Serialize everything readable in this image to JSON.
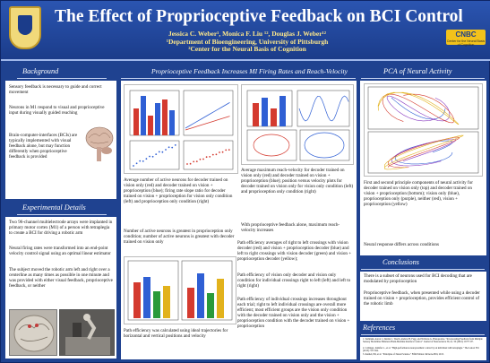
{
  "header": {
    "title": "The Effect of Proprioceptive Feedback on BCI Control",
    "authors": "Jessica C. Weber¹, Monica F. Liu ¹², Douglas J. Weber¹²",
    "affil1": "¹Department of Bioengineering, University of Pittsburgh",
    "affil2": "²Center for the Neural Basis of Cognition",
    "logo_text": "CNBC",
    "logo_sub": "Center for the Neural Basis of Cognition"
  },
  "sections": {
    "background": "Background",
    "experimental": "Experimental Details",
    "middle": "Proprioceptive Feedback Increases MI Firing Rates and Reach-Velocity",
    "pca": "PCA of Neural Activity",
    "conclusions": "Conclusions",
    "references": "References"
  },
  "background": {
    "p1": "Sensory feedback is necessary to guide and correct movement",
    "p2": "Neurons in M1 respond to visual and proprioceptive input during visually guided reaching",
    "p3": "Brain-computer-interfaces (BCIs) are typically implemented with visual feedback alone, but may function differently when proprioceptive feedback is provided"
  },
  "experimental": {
    "p1": "Two 96-channel multielectrode arrays were implanted in primary motor cortex (M1) of a person with tetraplegia to create a BCI for driving a robotic arm",
    "p2": "Neural firing rates were transformed into an end-point velocity control signal using an optimal linear estimator",
    "p3": "The subject moved the robotic arm left and right over a centerline as many times as possible in one minute and was provided with either visual feedback, proprioceptive feedback, or neither"
  },
  "middle": {
    "c1": "Average number of active neurons for decoder trained on vision only (red) and decoder trained on vision + proprioception (blue); firing rate slope ratio for decoder trained on vision + proprioception for vision only condition (left) and proprioception only condition (right)",
    "c2": "Number of active neurons is greatest in proprioception only condition; number of active neurons is greatest with decoder trained on vision only",
    "c3": "Path efficiency was calculated using ideal trajectories for horizontal and vertical positions and velocity",
    "r1": "Average maximum reach-velocity for decoder trained on vision only (red) and decoder trained on vision + proprioception (blue); position versus velocity plots for decoder trained on vision only for vision only condition (left) and proprioception only condition (right)",
    "r2": "With proprioceptive feedback alone, maximum reach-velocity increases",
    "r3": "Path efficiency averages of right to left crossings with vision decoder (red) and vision + proprioception decoder (blue) and left to right crossings with vision decoder (green) and vision + proprioception decoder (yellow);",
    "r4": "Path efficiency of vision only decoder and vision only condition for individual crossings right to left (left) and left to right (right)",
    "r5": "Path efficiency of individual crossings increases throughout each trial; right to left individual crossings are overall more efficient; most efficient groups are the vision only condition with the decoder trained on vision only and the vision + proprioception condition with the decoder trained on vision + proprioception"
  },
  "pca": {
    "p1": "First and second principle components of neural activity for decoder trained on vision only (top) and decoder trained on vision + proprioception (bottom); vision only (blue), proprioception only (purple), neither (red), vision + proprioception (yellow)",
    "p2": "Neural response differs across conditions"
  },
  "conclusions": {
    "p1": "There is a subset of neurons used for BCI decoding that are modulated by proprioception",
    "p2": "Proprioceptive feedback, when presented while using a decoder trained on vision + proprioception, provides efficient control of the robotic limb"
  },
  "references": {
    "r1": "1. Suminski, Aaron J., Dennis C. Tkach, Andrew H. Fagg, and Nicholas G. Hatsopoulos. \"Incorporating Feedback from Multiple Sensory Modalities Enhances Brain-Machine Interface Control.\" Journal of Neuroscience 30, no. 50 (2010): 16777-87.",
    "r2": "2. Collinger, Jennifer L., et al. \"High-performance neuroprosthetic control by an individual with tetraplegia.\" The Lancet 381 (2013): 557-564.",
    "r3": "3. Kandel, ER, et al. \"Principles of Neural Science.\" Fifth Edition. McGraw-Hill, 2013."
  },
  "colors": {
    "poster_bg": "#1f4290",
    "title": "#ffffff",
    "authors": "#ffe98a",
    "red": "#d43a2f",
    "blue": "#2f5fd4",
    "green": "#2a9a3a",
    "yellow": "#e2b21c",
    "purple": "#8a3cc0"
  }
}
